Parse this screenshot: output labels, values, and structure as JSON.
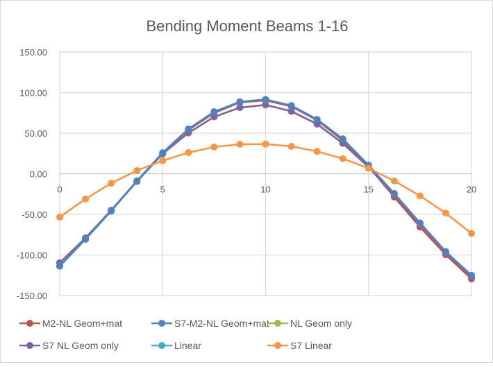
{
  "chart_data": {
    "type": "line",
    "title": "Bending Moment Beams 1-16",
    "xlabel": "",
    "ylabel": "",
    "xlim": [
      0,
      20
    ],
    "ylim": [
      -150,
      150
    ],
    "x_ticks": [
      "0",
      "5",
      "10",
      "15",
      "20"
    ],
    "x_tick_values": [
      0,
      5,
      10,
      15,
      20
    ],
    "y_ticks": [
      "150.00",
      "100.00",
      "50.00",
      "0.00",
      "-50.00",
      "-100.00",
      "-150.00"
    ],
    "y_tick_values": [
      150,
      100,
      50,
      0,
      -50,
      -100,
      -150
    ],
    "grid": true,
    "legend_position": "bottom",
    "x": [
      0,
      1.25,
      2.5,
      3.75,
      5,
      6.25,
      7.5,
      8.75,
      10,
      11.25,
      12.5,
      13.75,
      15,
      16.25,
      17.5,
      18.75,
      20
    ],
    "series": [
      {
        "name": "M2-NL Geom+mat",
        "color": "#c0504d",
        "values": [
          -110,
          -79,
          -45,
          -9,
          25,
          54,
          75,
          88,
          90.5,
          83,
          66,
          41,
          9,
          -28.6,
          -65.6,
          -99.7,
          -129.5
        ]
      },
      {
        "name": "S7-M2-NL Geom+mat",
        "color": "#4f81bd",
        "values": [
          -113.8,
          -80.6,
          -45.7,
          -8.8,
          25.9,
          55.1,
          76.4,
          88.6,
          91.5,
          84,
          67,
          42.9,
          10.6,
          -24.4,
          -60.7,
          -95.9,
          -125.2
        ]
      },
      {
        "name": "NL Geom only",
        "color": "#9bbb59",
        "values": [
          -110,
          -79.2,
          -45,
          -9.5,
          24.7,
          50.3,
          70.2,
          81.5,
          84.9,
          77,
          61.3,
          37.5,
          8.3,
          -26,
          -62,
          -97,
          -127
        ]
      },
      {
        "name": "S7 NL Geom only",
        "color": "#8064a2",
        "values": [
          -109.6,
          -79.2,
          -45,
          -9.5,
          24.7,
          50.3,
          70.2,
          81.5,
          84.9,
          77,
          61.3,
          37.5,
          8.3,
          -26,
          -62,
          -97,
          -127
        ]
      },
      {
        "name": "Linear",
        "color": "#4bacc6",
        "values": [
          -113.8,
          -80.6,
          -45.7,
          -8.8,
          25.9,
          55.1,
          76.4,
          88.6,
          91.5,
          84,
          67,
          42.9,
          10.6,
          -24.4,
          -60.7,
          -95.9,
          -125.2
        ]
      },
      {
        "name": "S7 Linear",
        "color": "#f79646",
        "values": [
          -53.3,
          -31,
          -11.6,
          4,
          16.2,
          26.1,
          33,
          36.4,
          36.6,
          33.8,
          27.6,
          18.7,
          6.8,
          -8.8,
          -27.2,
          -48.5,
          -73.5
        ]
      }
    ]
  }
}
